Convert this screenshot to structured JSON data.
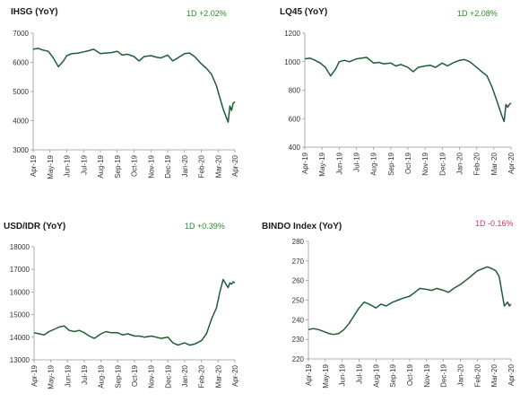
{
  "chart_data": [
    {
      "type": "line",
      "title": "IHSG (YoY)",
      "annotation": "1D +2.02%",
      "annotation_sign": "positive",
      "ylim": [
        3000,
        7000
      ],
      "yticks": [
        "3000",
        "4000",
        "5000",
        "6000",
        "7000"
      ],
      "xticks": [
        "Apr-19",
        "May-19",
        "Jun-19",
        "Jul-19",
        "Aug-19",
        "Sep-19",
        "Oct-19",
        "Nov-19",
        "Dec-19",
        "Jan-20",
        "Feb-20",
        "Mar-20",
        "Apr-20"
      ],
      "x": [
        0,
        0.3,
        0.6,
        0.9,
        1.2,
        1.5,
        1.8,
        2.0,
        2.3,
        2.6,
        3.0,
        3.3,
        3.6,
        4.0,
        4.3,
        4.6,
        5.0,
        5.3,
        5.6,
        6.0,
        6.3,
        6.6,
        7.0,
        7.3,
        7.6,
        8.0,
        8.3,
        8.6,
        9.0,
        9.3,
        9.6,
        10.0,
        10.3,
        10.6,
        10.9,
        11.1,
        11.3,
        11.5,
        11.6,
        11.7,
        11.8,
        11.9,
        12.0
      ],
      "series": [
        {
          "values": [
            6450,
            6480,
            6420,
            6380,
            6150,
            5850,
            6050,
            6230,
            6300,
            6310,
            6360,
            6400,
            6450,
            6300,
            6320,
            6330,
            6380,
            6250,
            6280,
            6200,
            6050,
            6200,
            6230,
            6180,
            6150,
            6250,
            6050,
            6150,
            6300,
            6320,
            6200,
            5950,
            5800,
            5600,
            5200,
            4800,
            4400,
            4100,
            3950,
            4500,
            4350,
            4600,
            4650
          ]
        }
      ]
    },
    {
      "type": "line",
      "title": "LQ45 (YoY)",
      "annotation": "1D +2.08%",
      "annotation_sign": "positive",
      "ylim": [
        400,
        1200
      ],
      "yticks": [
        "400",
        "600",
        "800",
        "1000",
        "1200"
      ],
      "xticks": [
        "Apr-19",
        "May-19",
        "Jun-19",
        "Jul-19",
        "Aug-19",
        "Sep-19",
        "Oct-19",
        "Nov-19",
        "Dec-19",
        "Jan-20",
        "Feb-20",
        "Mar-20",
        "Apr-20"
      ],
      "x": [
        0,
        0.3,
        0.6,
        0.9,
        1.2,
        1.5,
        1.8,
        2.0,
        2.3,
        2.6,
        3.0,
        3.3,
        3.6,
        4.0,
        4.3,
        4.6,
        5.0,
        5.3,
        5.6,
        6.0,
        6.3,
        6.6,
        7.0,
        7.3,
        7.6,
        8.0,
        8.3,
        8.6,
        9.0,
        9.3,
        9.6,
        10.0,
        10.3,
        10.6,
        10.9,
        11.1,
        11.3,
        11.5,
        11.6,
        11.7,
        11.8,
        11.9,
        12.0
      ],
      "series": [
        {
          "values": [
            1020,
            1025,
            1010,
            990,
            960,
            900,
            950,
            1000,
            1010,
            1000,
            1020,
            1025,
            1030,
            990,
            995,
            985,
            990,
            970,
            980,
            960,
            930,
            960,
            970,
            975,
            960,
            990,
            970,
            990,
            1010,
            1015,
            1000,
            960,
            930,
            900,
            820,
            750,
            680,
            610,
            580,
            700,
            680,
            700,
            710
          ]
        }
      ]
    },
    {
      "type": "line",
      "title": "USD/IDR  (YoY)",
      "annotation": "1D +0.39%",
      "annotation_sign": "positive",
      "ylim": [
        13000,
        18000
      ],
      "yticks": [
        "13000",
        "14000",
        "15000",
        "16000",
        "17000",
        "18000"
      ],
      "xticks": [
        "Apr-19",
        "May-19",
        "Jun-19",
        "Jul-19",
        "Aug-19",
        "Sep-19",
        "Oct-19",
        "Nov-19",
        "Dec-19",
        "Jan-20",
        "Feb-20",
        "Mar-20",
        "Apr-20"
      ],
      "x": [
        0,
        0.3,
        0.6,
        0.9,
        1.2,
        1.5,
        1.8,
        2.1,
        2.4,
        2.7,
        3.0,
        3.3,
        3.6,
        4.0,
        4.3,
        4.6,
        5.0,
        5.3,
        5.6,
        6.0,
        6.3,
        6.6,
        7.0,
        7.3,
        7.6,
        8.0,
        8.3,
        8.6,
        9.0,
        9.3,
        9.6,
        10.0,
        10.3,
        10.6,
        10.9,
        11.1,
        11.3,
        11.5,
        11.6,
        11.7,
        11.8,
        11.9,
        12.0
      ],
      "series": [
        {
          "values": [
            14200,
            14150,
            14100,
            14250,
            14350,
            14450,
            14500,
            14300,
            14250,
            14300,
            14200,
            14050,
            13950,
            14150,
            14250,
            14200,
            14200,
            14100,
            14150,
            14050,
            14050,
            14000,
            14050,
            14000,
            13950,
            14000,
            13750,
            13650,
            13750,
            13650,
            13700,
            13850,
            14150,
            14800,
            15300,
            16000,
            16550,
            16300,
            16200,
            16400,
            16350,
            16450,
            16400
          ]
        }
      ]
    },
    {
      "type": "line",
      "title": "BINDO Index (YoY)",
      "annotation": "1D -0.16%",
      "annotation_sign": "negative",
      "ylim": [
        220,
        280
      ],
      "yticks": [
        "220",
        "230",
        "240",
        "250",
        "260",
        "270",
        "280"
      ],
      "xticks": [
        "Apr-19",
        "May-19",
        "Jun-19",
        "Jul-19",
        "Aug-19",
        "Sep-19",
        "Oct-19",
        "Nov-19",
        "Dec-19",
        "Jan-20",
        "Feb-20",
        "Mar-20",
        "Apr-20"
      ],
      "x": [
        0,
        0.3,
        0.6,
        0.9,
        1.2,
        1.5,
        1.8,
        2.1,
        2.4,
        2.7,
        3.0,
        3.3,
        3.6,
        4.0,
        4.3,
        4.6,
        5.0,
        5.3,
        5.6,
        6.0,
        6.3,
        6.6,
        7.0,
        7.3,
        7.6,
        8.0,
        8.3,
        8.6,
        9.0,
        9.3,
        9.6,
        10.0,
        10.3,
        10.6,
        10.9,
        11.1,
        11.3,
        11.5,
        11.6,
        11.7,
        11.8,
        11.9,
        12.0
      ],
      "series": [
        {
          "values": [
            235,
            235.5,
            235,
            234,
            233,
            232.5,
            233,
            235,
            238,
            242,
            246,
            249,
            248,
            246,
            248,
            247,
            249,
            250,
            251,
            252,
            254,
            256,
            255.5,
            255,
            256,
            255,
            254,
            256,
            258,
            260,
            262,
            265,
            266,
            267,
            266,
            265,
            262,
            252,
            247,
            248,
            249,
            247,
            248
          ]
        }
      ]
    }
  ]
}
